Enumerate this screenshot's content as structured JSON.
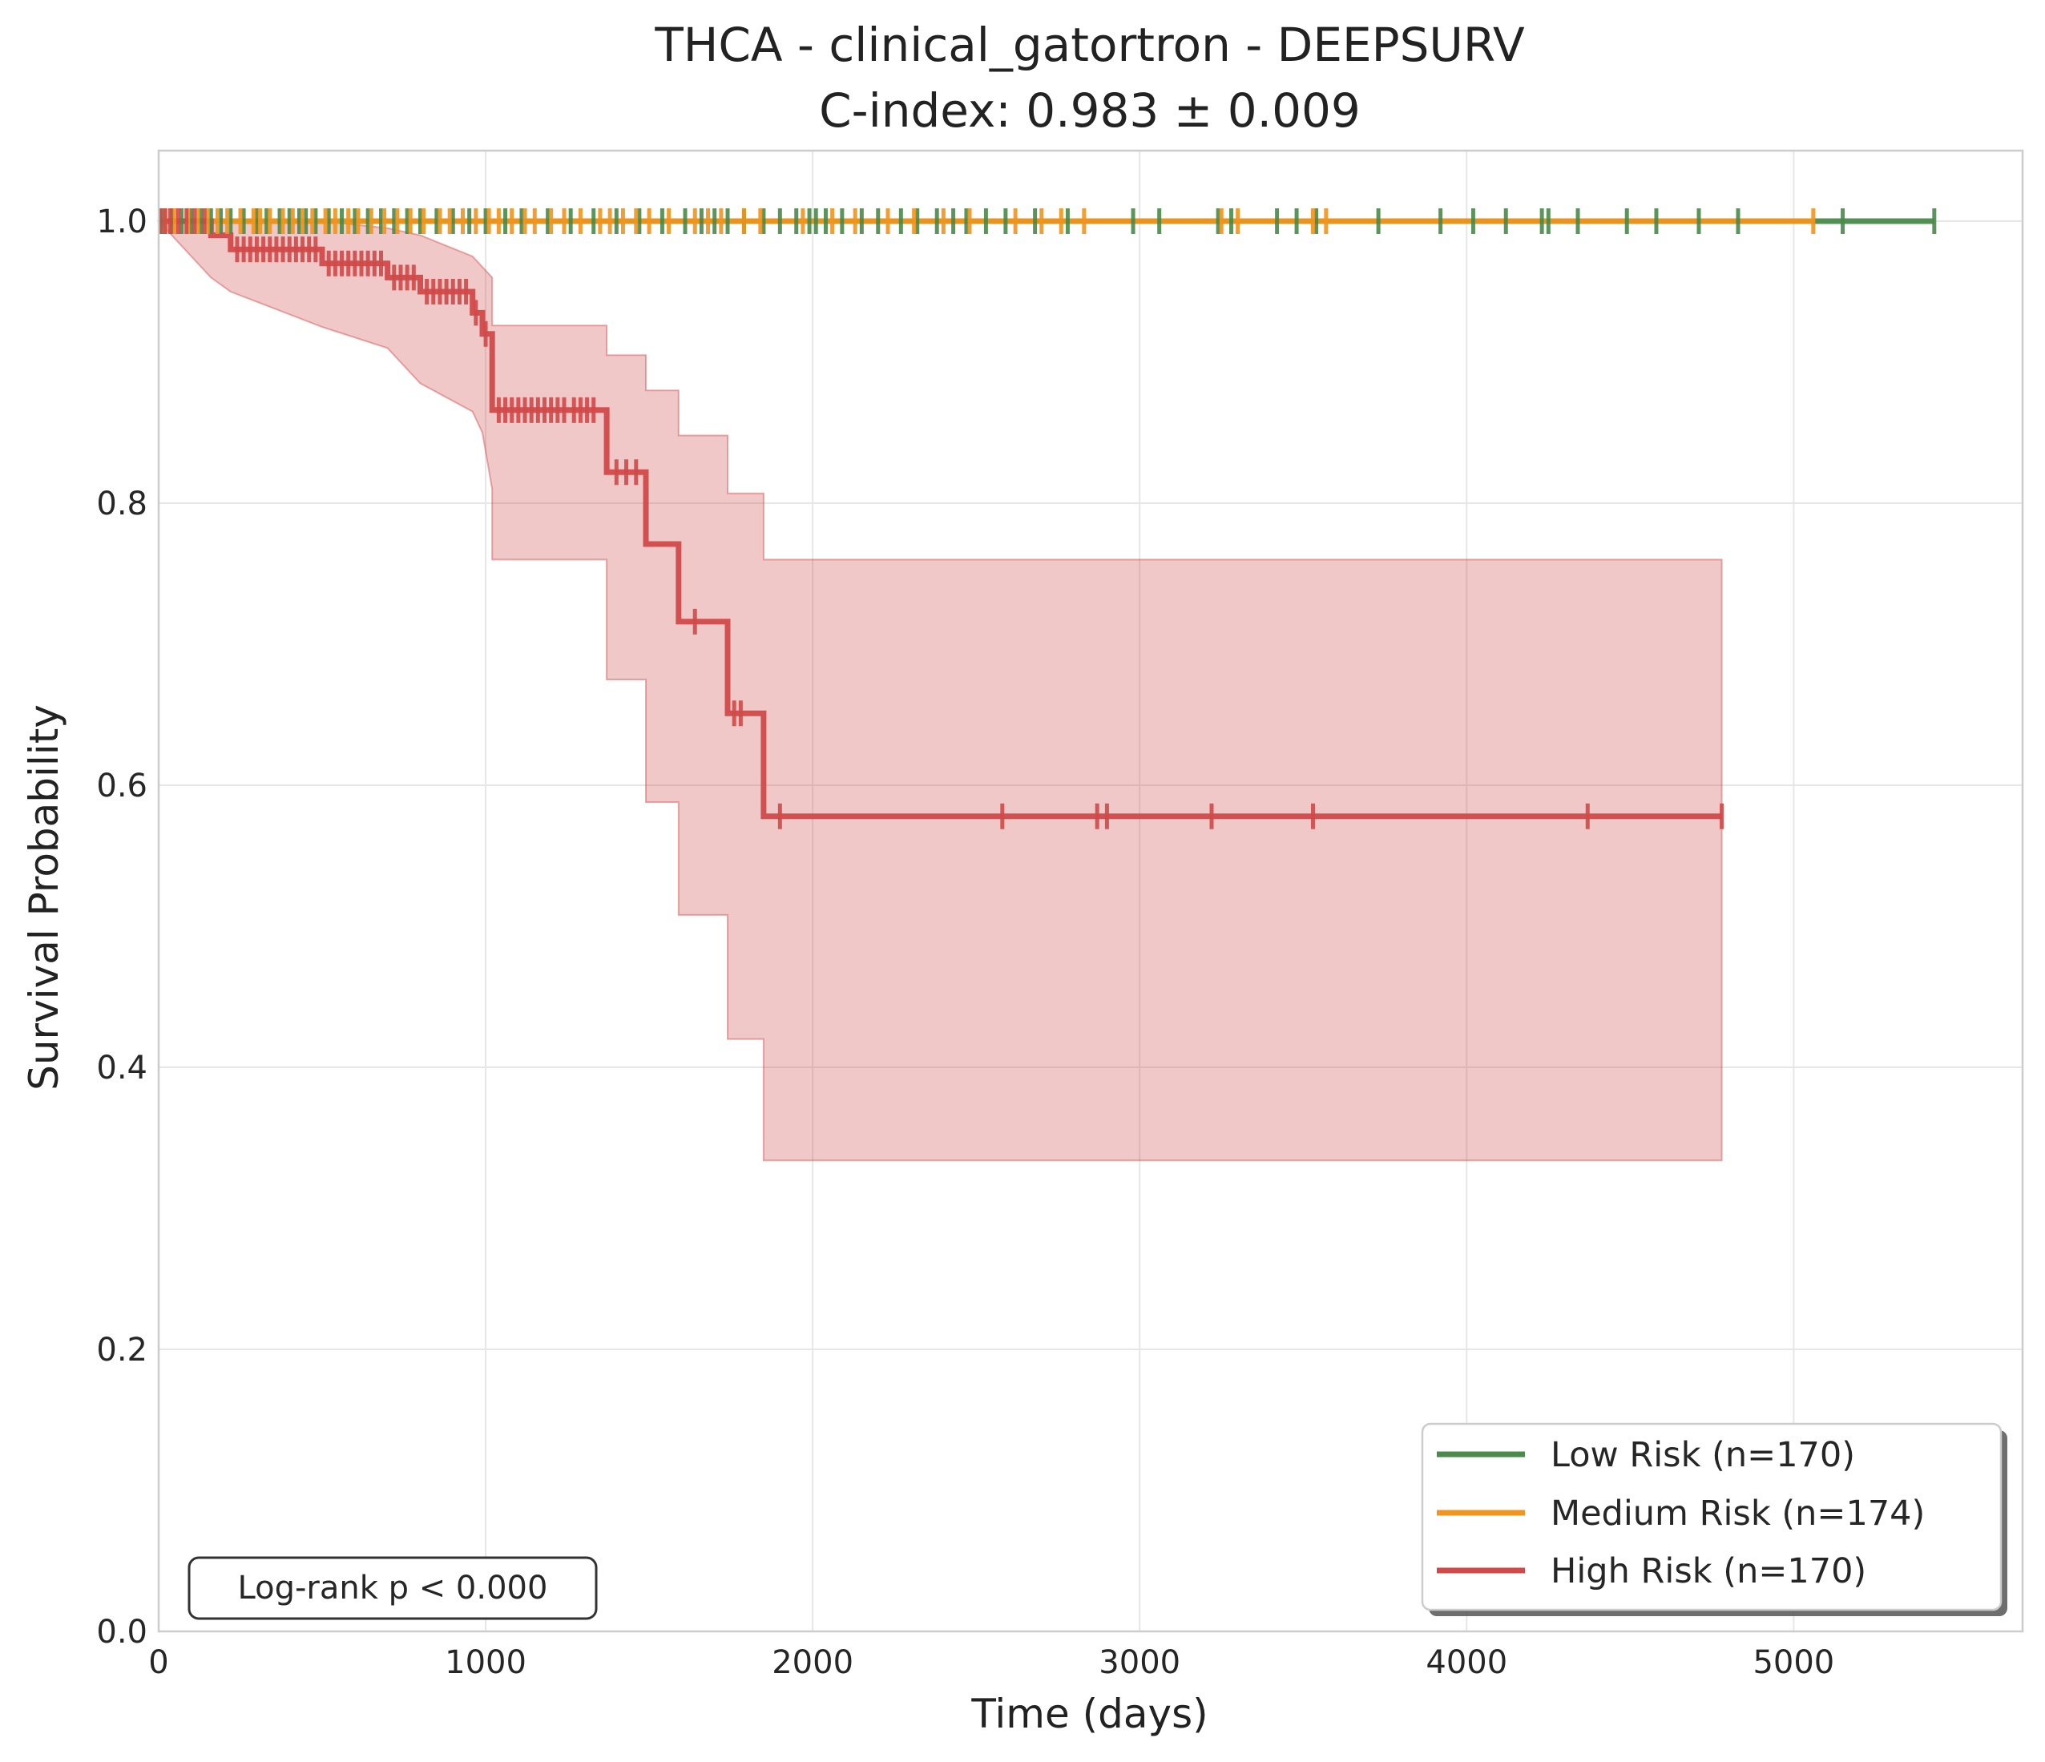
{
  "chart_data": {
    "type": "line",
    "subtype": "kaplan-meier",
    "title": "THCA - clinical_gatortron - DEEPSURV",
    "subtitle": "C-index: 0.983 ± 0.009",
    "xlabel": "Time (days)",
    "ylabel": "Survival Probability",
    "xlim": [
      0,
      5700
    ],
    "ylim": [
      0,
      1.05
    ],
    "x_ticks": [
      0,
      1000,
      2000,
      3000,
      4000,
      5000
    ],
    "x_tick_labels": [
      "0",
      "1000",
      "2000",
      "3000",
      "4000",
      "5000"
    ],
    "y_ticks": [
      0,
      0.2,
      0.4,
      0.6,
      0.8,
      1.0
    ],
    "y_tick_labels": [
      "0.0",
      "0.2",
      "0.4",
      "0.6",
      "0.8",
      "1.0"
    ],
    "grid": true,
    "legend_position": "lower-right",
    "annotation": "Log-rank p < 0.000",
    "series": [
      {
        "name": "Low Risk (n=170)",
        "color": "#4a8a4a",
        "steps": [
          [
            0,
            1.0
          ],
          [
            5430,
            1.0
          ]
        ],
        "censor_times": [
          10,
          40,
          70,
          100,
          130,
          160,
          190,
          220,
          260,
          300,
          330,
          370,
          400,
          430,
          450,
          480,
          520,
          560,
          600,
          640,
          680,
          720,
          760,
          800,
          850,
          900,
          950,
          1000,
          1060,
          1110,
          1190,
          1260,
          1330,
          1400,
          1470,
          1540,
          1610,
          1660,
          1700,
          1740,
          1790,
          1850,
          1900,
          1950,
          1990,
          2010,
          2040,
          2090,
          2150,
          2200,
          2270,
          2320,
          2380,
          2430,
          2470,
          2530,
          2590,
          2680,
          2780,
          2980,
          3060,
          3240,
          3280,
          3420,
          3480,
          3540,
          3730,
          3920,
          4020,
          4120,
          4230,
          4250,
          4340,
          4490,
          4580,
          4710,
          4830,
          5150,
          5430
        ],
        "ci": null
      },
      {
        "name": "Medium Risk (n=174)",
        "color": "#f0951f",
        "steps": [
          [
            0,
            1.0
          ],
          [
            5060,
            1.0
          ]
        ],
        "censor_times": [
          20,
          50,
          90,
          120,
          150,
          180,
          210,
          250,
          290,
          310,
          340,
          380,
          410,
          440,
          470,
          510,
          540,
          580,
          610,
          650,
          690,
          730,
          770,
          810,
          860,
          890,
          930,
          970,
          1010,
          1040,
          1080,
          1120,
          1150,
          1200,
          1240,
          1290,
          1350,
          1380,
          1420,
          1460,
          1500,
          1560,
          1640,
          1680,
          1720,
          1790,
          1840,
          1970,
          2060,
          2130,
          2230,
          2310,
          2400,
          2480,
          2620,
          2700,
          2760,
          2830,
          3250,
          3300,
          3530,
          3570,
          5060
        ],
        "ci": null
      },
      {
        "name": "High Risk (n=170)",
        "color": "#d04a4a",
        "steps": [
          [
            0,
            1.0
          ],
          [
            160,
            1.0
          ],
          [
            160,
            0.99
          ],
          [
            220,
            0.99
          ],
          [
            220,
            0.98
          ],
          [
            500,
            0.98
          ],
          [
            500,
            0.97
          ],
          [
            700,
            0.97
          ],
          [
            700,
            0.96
          ],
          [
            800,
            0.96
          ],
          [
            800,
            0.95
          ],
          [
            960,
            0.95
          ],
          [
            960,
            0.935
          ],
          [
            990,
            0.935
          ],
          [
            990,
            0.92
          ],
          [
            1020,
            0.92
          ],
          [
            1020,
            0.866
          ],
          [
            1370,
            0.866
          ],
          [
            1370,
            0.822
          ],
          [
            1490,
            0.822
          ],
          [
            1490,
            0.771
          ],
          [
            1590,
            0.771
          ],
          [
            1590,
            0.716
          ],
          [
            1740,
            0.716
          ],
          [
            1740,
            0.651
          ],
          [
            1850,
            0.651
          ],
          [
            1850,
            0.578
          ],
          [
            4780,
            0.578
          ]
        ],
        "censor_times": [
          5,
          20,
          35,
          60,
          85,
          110,
          140,
          240,
          260,
          280,
          300,
          320,
          340,
          360,
          380,
          400,
          420,
          440,
          460,
          480,
          520,
          540,
          560,
          580,
          600,
          620,
          640,
          660,
          680,
          720,
          740,
          760,
          780,
          820,
          840,
          860,
          880,
          900,
          920,
          940,
          970,
          1000,
          1040,
          1060,
          1080,
          1100,
          1120,
          1140,
          1160,
          1180,
          1200,
          1220,
          1240,
          1270,
          1290,
          1310,
          1330,
          1400,
          1430,
          1460,
          1640,
          1760,
          1780,
          1900,
          2580,
          2870,
          2900,
          3220,
          3530,
          4370,
          4780
        ],
        "ci": {
          "upper": [
            [
              0,
              1.0
            ],
            [
              160,
              1.0
            ],
            [
              160,
              1.0
            ],
            [
              500,
              1.0
            ],
            [
              700,
              0.995
            ],
            [
              800,
              0.99
            ],
            [
              960,
              0.975
            ],
            [
              1020,
              0.96
            ],
            [
              1020,
              0.926
            ],
            [
              1370,
              0.926
            ],
            [
              1370,
              0.905
            ],
            [
              1490,
              0.905
            ],
            [
              1490,
              0.88
            ],
            [
              1590,
              0.88
            ],
            [
              1590,
              0.848
            ],
            [
              1740,
              0.848
            ],
            [
              1740,
              0.807
            ],
            [
              1850,
              0.807
            ],
            [
              1850,
              0.76
            ],
            [
              4780,
              0.76
            ]
          ],
          "lower": [
            [
              0,
              1.0
            ],
            [
              160,
              0.96
            ],
            [
              220,
              0.95
            ],
            [
              500,
              0.925
            ],
            [
              700,
              0.91
            ],
            [
              800,
              0.885
            ],
            [
              960,
              0.865
            ],
            [
              990,
              0.85
            ],
            [
              1020,
              0.81
            ],
            [
              1020,
              0.76
            ],
            [
              1370,
              0.76
            ],
            [
              1370,
              0.675
            ],
            [
              1490,
              0.675
            ],
            [
              1490,
              0.588
            ],
            [
              1590,
              0.588
            ],
            [
              1590,
              0.508
            ],
            [
              1740,
              0.508
            ],
            [
              1740,
              0.42
            ],
            [
              1850,
              0.42
            ],
            [
              1850,
              0.334
            ],
            [
              4780,
              0.334
            ]
          ]
        }
      }
    ]
  }
}
